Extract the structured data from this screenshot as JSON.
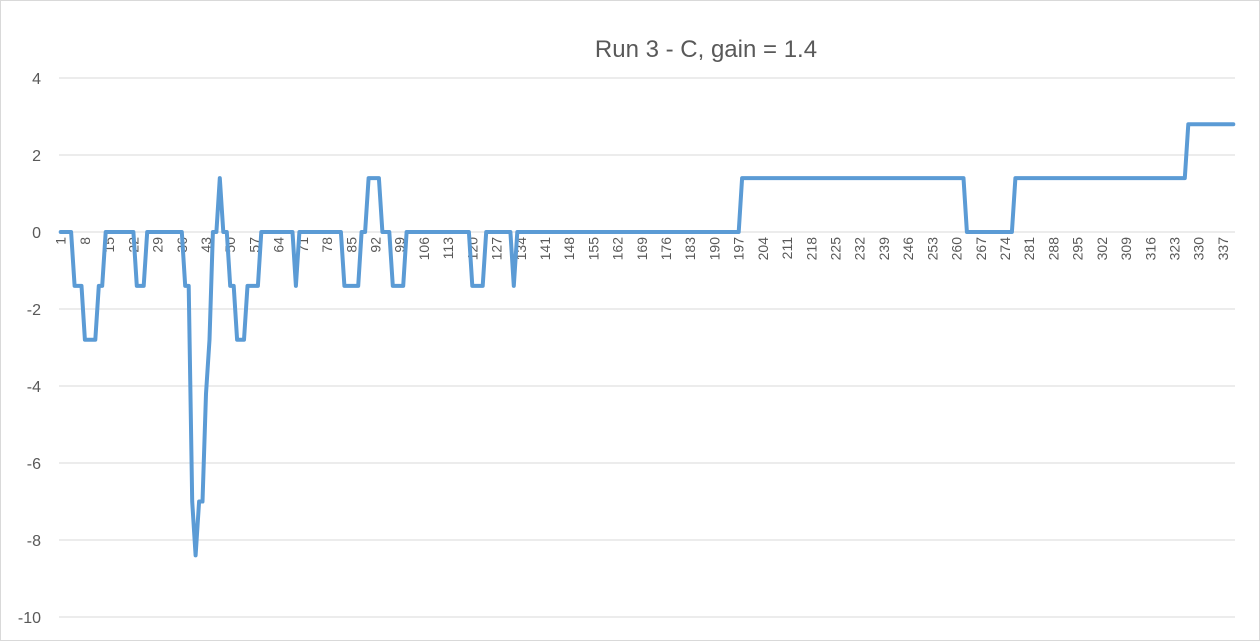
{
  "chart_data": {
    "type": "line",
    "title": "Run 3 - C, gain = 1.4",
    "xlabel": "",
    "ylabel": "",
    "ylim": [
      -10,
      4
    ],
    "yticks": [
      4,
      2,
      0,
      -2,
      -4,
      -6,
      -8,
      -10
    ],
    "grid": true,
    "legend": "none",
    "x_count": 340,
    "xtick_labels": [
      1,
      8,
      15,
      22,
      29,
      36,
      43,
      50,
      57,
      64,
      71,
      78,
      85,
      92,
      99,
      106,
      113,
      120,
      127,
      134,
      141,
      148,
      155,
      162,
      169,
      176,
      183,
      190,
      197,
      204,
      211,
      218,
      225,
      232,
      239,
      246,
      253,
      260,
      267,
      274,
      281,
      288,
      295,
      302,
      309,
      316,
      323,
      330,
      337
    ],
    "series_color": "#5b9bd5",
    "series_points": [
      [
        1,
        0
      ],
      [
        4,
        0
      ],
      [
        5,
        -1.4
      ],
      [
        7,
        -1.4
      ],
      [
        8,
        -2.8
      ],
      [
        11,
        -2.8
      ],
      [
        12,
        -1.4
      ],
      [
        13,
        -1.4
      ],
      [
        14,
        0
      ],
      [
        22,
        0
      ],
      [
        23,
        -1.4
      ],
      [
        25,
        -1.4
      ],
      [
        26,
        0
      ],
      [
        36,
        0
      ],
      [
        37,
        -1.4
      ],
      [
        38,
        -1.4
      ],
      [
        39,
        -7
      ],
      [
        40,
        -8.4
      ],
      [
        41,
        -7
      ],
      [
        42,
        -7
      ],
      [
        43,
        -4.2
      ],
      [
        44,
        -2.8
      ],
      [
        45,
        0
      ],
      [
        46,
        0
      ],
      [
        47,
        1.4
      ],
      [
        48,
        0
      ],
      [
        49,
        0
      ],
      [
        50,
        -1.4
      ],
      [
        51,
        -1.4
      ],
      [
        52,
        -2.8
      ],
      [
        54,
        -2.8
      ],
      [
        55,
        -1.4
      ],
      [
        58,
        -1.4
      ],
      [
        59,
        0
      ],
      [
        68,
        0
      ],
      [
        69,
        -1.4
      ],
      [
        70,
        0
      ],
      [
        82,
        0
      ],
      [
        83,
        -1.4
      ],
      [
        87,
        -1.4
      ],
      [
        88,
        0
      ],
      [
        89,
        0
      ],
      [
        90,
        1.4
      ],
      [
        93,
        1.4
      ],
      [
        94,
        0
      ],
      [
        96,
        0
      ],
      [
        97,
        -1.4
      ],
      [
        100,
        -1.4
      ],
      [
        101,
        0
      ],
      [
        119,
        0
      ],
      [
        120,
        -1.4
      ],
      [
        123,
        -1.4
      ],
      [
        124,
        0
      ],
      [
        131,
        0
      ],
      [
        132,
        -1.4
      ],
      [
        133,
        0
      ],
      [
        197,
        0
      ],
      [
        198,
        1.4
      ],
      [
        262,
        1.4
      ],
      [
        263,
        0
      ],
      [
        276,
        0
      ],
      [
        277,
        1.4
      ],
      [
        326,
        1.4
      ],
      [
        327,
        2.8
      ],
      [
        340,
        2.8
      ]
    ]
  }
}
